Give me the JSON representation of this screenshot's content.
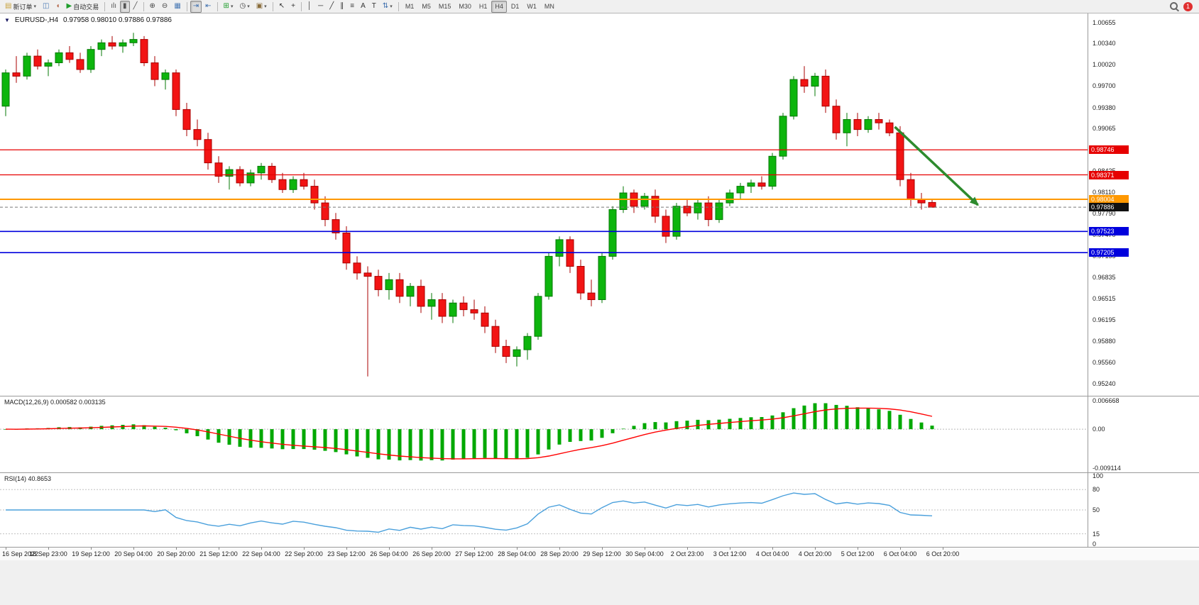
{
  "app": {
    "background": "#f0f0f0"
  },
  "toolbar": {
    "active_timeframe": "H4",
    "badge_count": "1",
    "items": [
      {
        "kind": "btn",
        "name": "new-order-button",
        "icon": "new-order-icon",
        "glyph": "▤",
        "glyph_color": "#c8a23c",
        "label": "新订单",
        "caret": true
      },
      {
        "kind": "btn",
        "name": "terminal-button",
        "icon": "terminal-chart-icon",
        "glyph": "◫",
        "glyph_color": "#4a7ab5"
      },
      {
        "kind": "btn",
        "name": "alerts-button",
        "icon": "speaker-icon",
        "glyph": "◖",
        "glyph_color": "#b5684a"
      },
      {
        "kind": "btn",
        "name": "autotrading-button",
        "icon": "autotrading-play-icon",
        "glyph": "▶",
        "glyph_color": "#1f9e2c",
        "label": "自动交易"
      },
      {
        "kind": "sep"
      },
      {
        "kind": "btn",
        "name": "bar-chart-mode-button",
        "icon": "bar-chart-icon",
        "glyph": "ılı",
        "glyph_color": "#555555"
      },
      {
        "kind": "btn",
        "name": "candlestick-mode-button",
        "icon": "candlestick-icon",
        "glyph": "▮",
        "glyph_color": "#555555",
        "active": true
      },
      {
        "kind": "btn",
        "name": "line-chart-mode-button",
        "icon": "line-chart-icon",
        "glyph": "╱",
        "glyph_color": "#555555"
      },
      {
        "kind": "sep"
      },
      {
        "kind": "btn",
        "name": "zoom-in-button",
        "icon": "zoom-in-icon",
        "glyph": "⊕",
        "glyph_color": "#444444"
      },
      {
        "kind": "btn",
        "name": "zoom-out-button",
        "icon": "zoom-out-icon",
        "glyph": "⊖",
        "glyph_color": "#444444"
      },
      {
        "kind": "btn",
        "name": "tile-windows-button",
        "icon": "tile-windows-icon",
        "glyph": "▦",
        "glyph_color": "#4a7ab5"
      },
      {
        "kind": "sep"
      },
      {
        "kind": "btn",
        "name": "auto-scroll-button",
        "icon": "auto-scroll-icon",
        "glyph": "⇥",
        "glyph_color": "#3e6fae",
        "active": true
      },
      {
        "kind": "btn",
        "name": "chart-shift-button",
        "icon": "chart-shift-icon",
        "glyph": "⇤",
        "glyph_color": "#3e6fae"
      },
      {
        "kind": "sep"
      },
      {
        "kind": "btn",
        "name": "indicators-button",
        "icon": "indicators-add-icon",
        "glyph": "⊞",
        "glyph_color": "#1f9e2c",
        "caret": true
      },
      {
        "kind": "btn",
        "name": "periods-button",
        "icon": "clock-icon",
        "glyph": "◷",
        "glyph_color": "#444444",
        "caret": true
      },
      {
        "kind": "btn",
        "name": "templates-button",
        "icon": "template-icon",
        "glyph": "▣",
        "glyph_color": "#8a6d3b",
        "caret": true
      },
      {
        "kind": "sep"
      },
      {
        "kind": "btn",
        "name": "cursor-button",
        "icon": "cursor-icon",
        "glyph": "↖",
        "glyph_color": "#333333"
      },
      {
        "kind": "btn",
        "name": "crosshair-button",
        "icon": "crosshair-icon",
        "glyph": "+",
        "glyph_color": "#333333"
      },
      {
        "kind": "sep"
      },
      {
        "kind": "btn",
        "name": "vertical-line-button",
        "icon": "vertical-line-icon",
        "glyph": "│",
        "glyph_color": "#333333"
      },
      {
        "kind": "btn",
        "name": "horizontal-line-button",
        "icon": "horizontal-line-icon",
        "glyph": "─",
        "glyph_color": "#333333"
      },
      {
        "kind": "btn",
        "name": "trendline-button",
        "icon": "trendline-icon",
        "glyph": "╱",
        "glyph_color": "#333333"
      },
      {
        "kind": "btn",
        "name": "channel-button",
        "icon": "channel-icon",
        "glyph": "∥",
        "glyph_color": "#333333"
      },
      {
        "kind": "btn",
        "name": "fibonacci-button",
        "icon": "fibonacci-icon",
        "glyph": "≡",
        "glyph_color": "#333333"
      },
      {
        "kind": "btn",
        "name": "text-button",
        "icon": "text-icon",
        "glyph": "A",
        "glyph_color": "#333333"
      },
      {
        "kind": "btn",
        "name": "text-label-button",
        "icon": "text-label-icon",
        "glyph": "T",
        "glyph_color": "#333333"
      },
      {
        "kind": "btn",
        "name": "arrows-button",
        "icon": "arrow-tools-icon",
        "glyph": "⇅",
        "glyph_color": "#3e6fae",
        "caret": true
      },
      {
        "kind": "sep"
      },
      {
        "kind": "tf",
        "name": "timeframe-m1-button",
        "label": "M1"
      },
      {
        "kind": "tf",
        "name": "timeframe-m5-button",
        "label": "M5"
      },
      {
        "kind": "tf",
        "name": "timeframe-m15-button",
        "label": "M15"
      },
      {
        "kind": "tf",
        "name": "timeframe-m30-button",
        "label": "M30"
      },
      {
        "kind": "tf",
        "name": "timeframe-h1-button",
        "label": "H1"
      },
      {
        "kind": "tf",
        "name": "timeframe-h4-button",
        "label": "H4",
        "active": true
      },
      {
        "kind": "tf",
        "name": "timeframe-d1-button",
        "label": "D1"
      },
      {
        "kind": "tf",
        "name": "timeframe-w1-button",
        "label": "W1"
      },
      {
        "kind": "tf",
        "name": "timeframe-mn-button",
        "label": "MN"
      },
      {
        "kind": "spacer"
      },
      {
        "kind": "search",
        "name": "search-button",
        "icon": "search-icon"
      },
      {
        "kind": "badge",
        "name": "notification-badge",
        "label": "1"
      }
    ]
  },
  "chart": {
    "title": "EURUSD-,H4",
    "ohlc_text": "0.97958 0.98010 0.97886 0.97886",
    "collapse_glyph": "▼",
    "price_ticks": [
      "1.00655",
      "1.00340",
      "1.00020",
      "0.99700",
      "0.99380",
      "0.99065",
      "0.98745",
      "0.98425",
      "0.98110",
      "0.97790",
      "0.97470",
      "0.97155",
      "0.96835",
      "0.96515",
      "0.96195",
      "0.95880",
      "0.95560",
      "0.95240"
    ],
    "levels": [
      {
        "value": 0.98746,
        "text": "0.98746",
        "color": "#e60000",
        "width": 1.3
      },
      {
        "value": 0.98371,
        "text": "0.98371",
        "color": "#e60000",
        "width": 1.3
      },
      {
        "value": 0.98004,
        "text": "0.98004",
        "color": "#ff9800",
        "width": 2
      },
      {
        "value": 0.97523,
        "text": "0.97523",
        "color": "#0000dd",
        "width": 1.6
      },
      {
        "value": 0.97205,
        "text": "0.97205",
        "color": "#0000dd",
        "width": 1.6
      }
    ],
    "bid": {
      "value": 0.97886,
      "text": "0.97886",
      "color": "#111111"
    },
    "arrow": {
      "from_index": 83.5,
      "from_price": 0.9909,
      "to_index": 91.3,
      "to_price": 0.9792,
      "color": "#2e8b2e"
    },
    "colors": {
      "bull": "#0db50d",
      "bull_stroke": "#067806",
      "bear": "#f21414",
      "bear_stroke": "#a80000",
      "bid_line": "#777777"
    }
  },
  "chart_data": {
    "type": "candlestick",
    "symbol": "EURUSD-",
    "timeframe": "H4",
    "x_label_step": 4,
    "x_labels": [
      "16 Sep 2022",
      "18 Sep 23:00",
      "19 Sep 12:00",
      "20 Sep 04:00",
      "20 Sep 20:00",
      "21 Sep 12:00",
      "22 Sep 04:00",
      "22 Sep 20:00",
      "23 Sep 12:00",
      "26 Sep 04:00",
      "26 Sep 20:00",
      "27 Sep 12:00",
      "28 Sep 04:00",
      "28 Sep 20:00",
      "29 Sep 12:00",
      "30 Sep 04:00",
      "2 Oct 23:00",
      "3 Oct 12:00",
      "4 Oct 04:00",
      "4 Oct 20:00",
      "5 Oct 12:00",
      "6 Oct 04:00",
      "6 Oct 20:00"
    ],
    "price_range": {
      "top": 1.008,
      "bottom": 0.9506
    },
    "ohlc": [
      [
        0.994,
        0.9995,
        0.9925,
        0.999
      ],
      [
        0.999,
        1.0015,
        0.9975,
        0.9985
      ],
      [
        0.9985,
        1.002,
        0.998,
        1.0015
      ],
      [
        1.0015,
        1.0025,
        0.9995,
        1.0
      ],
      [
        1.0,
        1.001,
        0.9985,
        1.0005
      ],
      [
        1.0005,
        1.0025,
        1.0,
        1.002
      ],
      [
        1.002,
        1.003,
        1.0005,
        1.001
      ],
      [
        1.001,
        1.002,
        0.999,
        0.9995
      ],
      [
        0.9995,
        1.003,
        0.999,
        1.0025
      ],
      [
        1.0025,
        1.004,
        1.0015,
        1.0035
      ],
      [
        1.0035,
        1.0045,
        1.0025,
        1.003
      ],
      [
        1.003,
        1.004,
        1.002,
        1.0035
      ],
      [
        1.0035,
        1.005,
        1.003,
        1.004
      ],
      [
        1.004,
        1.0045,
        1.0,
        1.0005
      ],
      [
        1.0005,
        1.0015,
        0.997,
        0.998
      ],
      [
        0.998,
        0.9995,
        0.9965,
        0.999
      ],
      [
        0.999,
        0.9995,
        0.9925,
        0.9935
      ],
      [
        0.9935,
        0.9945,
        0.9895,
        0.9905
      ],
      [
        0.9905,
        0.992,
        0.988,
        0.989
      ],
      [
        0.989,
        0.99,
        0.9845,
        0.9855
      ],
      [
        0.9855,
        0.9865,
        0.9825,
        0.9835
      ],
      [
        0.9835,
        0.985,
        0.9815,
        0.9845
      ],
      [
        0.9845,
        0.985,
        0.982,
        0.9825
      ],
      [
        0.9825,
        0.9845,
        0.982,
        0.984
      ],
      [
        0.984,
        0.9855,
        0.983,
        0.985
      ],
      [
        0.985,
        0.9855,
        0.9825,
        0.983
      ],
      [
        0.983,
        0.984,
        0.981,
        0.9815
      ],
      [
        0.9815,
        0.9835,
        0.981,
        0.983
      ],
      [
        0.983,
        0.984,
        0.9815,
        0.982
      ],
      [
        0.982,
        0.983,
        0.9785,
        0.9795
      ],
      [
        0.9795,
        0.9805,
        0.976,
        0.977
      ],
      [
        0.977,
        0.978,
        0.974,
        0.975
      ],
      [
        0.975,
        0.976,
        0.9695,
        0.9705
      ],
      [
        0.9705,
        0.9715,
        0.968,
        0.969
      ],
      [
        0.969,
        0.97,
        0.9535,
        0.9685
      ],
      [
        0.9685,
        0.9695,
        0.9655,
        0.9665
      ],
      [
        0.9665,
        0.969,
        0.965,
        0.968
      ],
      [
        0.968,
        0.969,
        0.9645,
        0.9655
      ],
      [
        0.9655,
        0.9675,
        0.964,
        0.967
      ],
      [
        0.967,
        0.968,
        0.963,
        0.964
      ],
      [
        0.964,
        0.966,
        0.962,
        0.965
      ],
      [
        0.965,
        0.966,
        0.9615,
        0.9625
      ],
      [
        0.9625,
        0.965,
        0.9615,
        0.9645
      ],
      [
        0.9645,
        0.9655,
        0.9625,
        0.9635
      ],
      [
        0.9635,
        0.965,
        0.962,
        0.963
      ],
      [
        0.963,
        0.964,
        0.96,
        0.961
      ],
      [
        0.961,
        0.962,
        0.957,
        0.958
      ],
      [
        0.958,
        0.959,
        0.9555,
        0.9565
      ],
      [
        0.9565,
        0.958,
        0.955,
        0.9575
      ],
      [
        0.9575,
        0.96,
        0.956,
        0.9595
      ],
      [
        0.9595,
        0.966,
        0.959,
        0.9655
      ],
      [
        0.9655,
        0.972,
        0.965,
        0.9715
      ],
      [
        0.9715,
        0.9745,
        0.97,
        0.974
      ],
      [
        0.974,
        0.9745,
        0.969,
        0.97
      ],
      [
        0.97,
        0.971,
        0.965,
        0.966
      ],
      [
        0.966,
        0.968,
        0.964,
        0.965
      ],
      [
        0.965,
        0.972,
        0.9645,
        0.9715
      ],
      [
        0.9715,
        0.979,
        0.971,
        0.9785
      ],
      [
        0.9785,
        0.982,
        0.978,
        0.981
      ],
      [
        0.981,
        0.9815,
        0.978,
        0.979
      ],
      [
        0.979,
        0.981,
        0.9785,
        0.9805
      ],
      [
        0.9805,
        0.9815,
        0.9765,
        0.9775
      ],
      [
        0.9775,
        0.9785,
        0.9735,
        0.9745
      ],
      [
        0.9745,
        0.9795,
        0.974,
        0.979
      ],
      [
        0.979,
        0.98,
        0.9775,
        0.978
      ],
      [
        0.978,
        0.98,
        0.977,
        0.9795
      ],
      [
        0.9795,
        0.9805,
        0.976,
        0.977
      ],
      [
        0.977,
        0.98,
        0.9765,
        0.9795
      ],
      [
        0.9795,
        0.9815,
        0.979,
        0.981
      ],
      [
        0.981,
        0.9825,
        0.98,
        0.982
      ],
      [
        0.982,
        0.983,
        0.981,
        0.9825
      ],
      [
        0.9825,
        0.9835,
        0.9815,
        0.982
      ],
      [
        0.982,
        0.987,
        0.9815,
        0.9865
      ],
      [
        0.9865,
        0.993,
        0.986,
        0.9925
      ],
      [
        0.9925,
        0.9985,
        0.992,
        0.998
      ],
      [
        0.998,
        1.0,
        0.996,
        0.997
      ],
      [
        0.997,
        0.999,
        0.9955,
        0.9985
      ],
      [
        0.9985,
        0.9995,
        0.993,
        0.994
      ],
      [
        0.994,
        0.995,
        0.989,
        0.99
      ],
      [
        0.99,
        0.993,
        0.988,
        0.992
      ],
      [
        0.992,
        0.993,
        0.9895,
        0.9905
      ],
      [
        0.9905,
        0.9925,
        0.99,
        0.992
      ],
      [
        0.992,
        0.993,
        0.9905,
        0.9915
      ],
      [
        0.9915,
        0.992,
        0.9895,
        0.99
      ],
      [
        0.99,
        0.991,
        0.982,
        0.983
      ],
      [
        0.983,
        0.984,
        0.979,
        0.98
      ],
      [
        0.98,
        0.981,
        0.9785,
        0.9795
      ],
      [
        0.97958,
        0.9801,
        0.97886,
        0.97886
      ]
    ]
  },
  "macd": {
    "label": "MACD(12,26,9) 0.000582 0.003135",
    "values": {
      "macd": "0.000582",
      "signal": "0.003135"
    },
    "fast": 12,
    "slow": 26,
    "signal": 9,
    "range": {
      "max": 0.006668,
      "min": -0.009114
    },
    "axis": [
      {
        "text": "0.006668",
        "value": 0.006668
      },
      {
        "text": "0.00",
        "value": 0
      },
      {
        "text": "-0.009114",
        "value": -0.009114
      }
    ],
    "colors": {
      "histogram": "#00a800",
      "signal": "#ff0000"
    }
  },
  "rsi": {
    "label": "RSI(14) 40.8653",
    "value": "40.8653",
    "period": 14,
    "levels": [
      80,
      50,
      15
    ],
    "axis": [
      {
        "text": "100",
        "value": 100
      },
      {
        "text": "80",
        "value": 80
      },
      {
        "text": "50",
        "value": 50
      },
      {
        "text": "15",
        "value": 15
      },
      {
        "text": "0",
        "value": 0
      }
    ],
    "color": "#4aa0dc"
  }
}
